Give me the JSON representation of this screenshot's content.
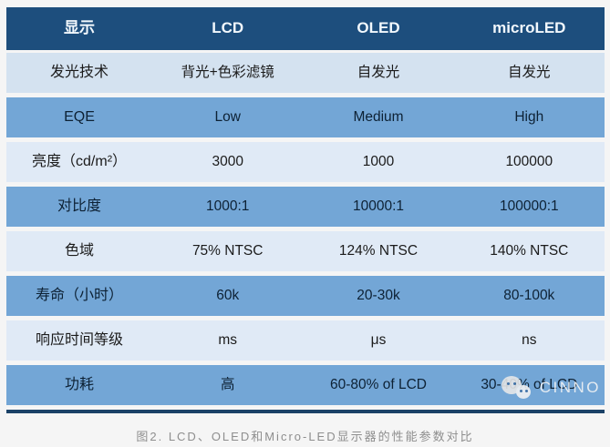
{
  "colors": {
    "header_bg": "#1d4e7d",
    "medium_row_bg": "#73a6d6",
    "light_row_bg": "#e0eaf6",
    "first_light_row_bg": "#d4e2f0",
    "header_text": "#f2f8fd",
    "medium_row_text": "#0d2134",
    "caption_text": "#8e8e8e",
    "bottom_border": "#1b4267"
  },
  "table": {
    "header": [
      "显示",
      "LCD",
      "OLED",
      "microLED"
    ],
    "rows": [
      {
        "label": "发光技术",
        "values": [
          "背光+色彩滤镜",
          "自发光",
          "自发光"
        ]
      },
      {
        "label": "EQE",
        "values": [
          "Low",
          "Medium",
          "High"
        ]
      },
      {
        "label": "亮度（cd/m²）",
        "values": [
          "3000",
          "1000",
          "100000"
        ]
      },
      {
        "label": "对比度",
        "values": [
          "1000:1",
          "10000:1",
          "100000:1"
        ]
      },
      {
        "label": "色域",
        "values": [
          "75% NTSC",
          "124% NTSC",
          "140% NTSC"
        ]
      },
      {
        "label": "寿命（小时）",
        "values": [
          "60k",
          "20-30k",
          "80-100k"
        ]
      },
      {
        "label": "响应时间等级",
        "values": [
          "ms",
          "μs",
          "ns"
        ]
      },
      {
        "label": "功耗",
        "values": [
          "高",
          "60-80% of LCD",
          "30-40% of LCD"
        ]
      }
    ]
  },
  "watermark": {
    "icon": "wechat-icon",
    "text": "CINNO"
  },
  "caption": "图2. LCD、OLED和Micro-LED显示器的性能参数对比"
}
